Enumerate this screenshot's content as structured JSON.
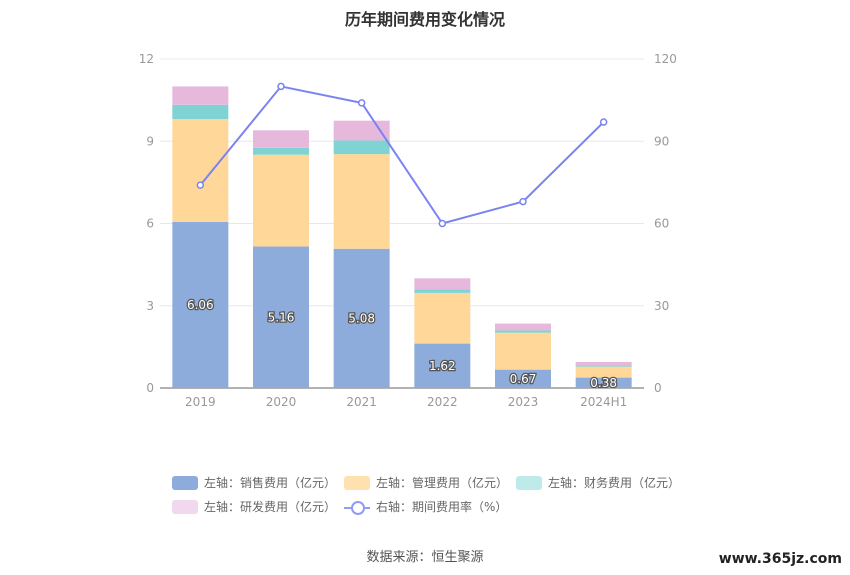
{
  "title": "历年期间费用变化情况",
  "source_text": "数据来源：恒生聚源",
  "watermark": "www.365jz.com",
  "colors": {
    "sales": "#8eacdb",
    "admin": "#ffd899",
    "finance": "#7fd3d3",
    "rd": "#e6b8dc",
    "rate": "#7b83f0",
    "grid": "#e6e8ee",
    "axis_text": "#999999"
  },
  "legend": [
    {
      "label": "左轴：销售费用（亿元）",
      "color": "#8eacdb",
      "kind": "box"
    },
    {
      "label": "左轴：管理费用（亿元）",
      "color": "#ffe1b0",
      "kind": "box"
    },
    {
      "label": "左轴：财务费用（亿元）",
      "color": "#bfeaea",
      "kind": "box"
    },
    {
      "label": "左轴：研发费用（亿元）",
      "color": "#f2d8ee",
      "kind": "box"
    },
    {
      "label": "右轴：期间费用率（%）",
      "color": "#8f9bf5",
      "kind": "line"
    }
  ],
  "chart_data": {
    "type": "bar",
    "stacked": true,
    "categories": [
      "2019",
      "2020",
      "2021",
      "2022",
      "2023",
      "2024H1"
    ],
    "left_axis": {
      "ylim": [
        0,
        12
      ],
      "ticks": [
        "0",
        "3",
        "6",
        "9",
        "12"
      ]
    },
    "right_axis": {
      "ylim": [
        0,
        120
      ],
      "ticks": [
        "0",
        "30",
        "60",
        "90",
        "120"
      ]
    },
    "series": [
      {
        "name": "左轴：销售费用（亿元）",
        "key": "sales",
        "values": [
          6.06,
          5.16,
          5.08,
          1.62,
          0.67,
          0.38
        ],
        "labels": [
          "6.06",
          "5.16",
          "5.08",
          "1.62",
          "0.67",
          "0.38"
        ]
      },
      {
        "name": "左轴：管理费用（亿元）",
        "key": "admin",
        "values": [
          3.75,
          3.35,
          3.45,
          1.85,
          1.35,
          0.4
        ]
      },
      {
        "name": "左轴：财务费用（亿元）",
        "key": "finance",
        "values": [
          0.52,
          0.25,
          0.5,
          0.13,
          0.08,
          0.05
        ]
      },
      {
        "name": "左轴：研发费用（亿元）",
        "key": "rd",
        "values": [
          0.67,
          0.64,
          0.72,
          0.4,
          0.25,
          0.12
        ]
      }
    ],
    "line_series": {
      "name": "右轴：期间费用率（%）",
      "values": [
        74,
        110,
        104,
        60,
        68,
        97
      ]
    },
    "grid": true,
    "legend_position": "bottom"
  }
}
